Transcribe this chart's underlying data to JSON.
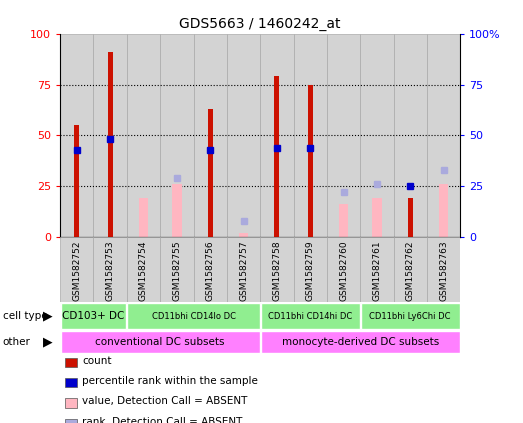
{
  "title": "GDS5663 / 1460242_at",
  "samples": [
    "GSM1582752",
    "GSM1582753",
    "GSM1582754",
    "GSM1582755",
    "GSM1582756",
    "GSM1582757",
    "GSM1582758",
    "GSM1582759",
    "GSM1582760",
    "GSM1582761",
    "GSM1582762",
    "GSM1582763"
  ],
  "count_values": [
    55,
    91,
    null,
    null,
    63,
    null,
    79,
    75,
    null,
    null,
    19,
    null
  ],
  "percentile_values": [
    43,
    48,
    null,
    null,
    43,
    null,
    44,
    44,
    null,
    null,
    25,
    null
  ],
  "absent_count_values": [
    null,
    null,
    19,
    26,
    null,
    2,
    null,
    null,
    16,
    19,
    null,
    26
  ],
  "absent_rank_values": [
    null,
    null,
    null,
    29,
    null,
    8,
    null,
    null,
    22,
    26,
    null,
    33
  ],
  "ylim": [
    0,
    100
  ],
  "bar_color_count": "#CC1100",
  "bar_color_percentile": "#0000CC",
  "bar_color_absent_count": "#FFB6C1",
  "bar_color_absent_rank": "#AAAADD",
  "col_bg_color": "#D3D3D3",
  "col_border_color": "#AAAAAA",
  "grid_color": "black",
  "cell_type_groups": [
    {
      "label": "CD103+ DC",
      "start": 0,
      "end": 2
    },
    {
      "label": "CD11bhi CD14lo DC",
      "start": 2,
      "end": 6
    },
    {
      "label": "CD11bhi CD14hi DC",
      "start": 6,
      "end": 9
    },
    {
      "label": "CD11bhi Ly6Chi DC",
      "start": 9,
      "end": 12
    }
  ],
  "other_groups": [
    {
      "label": "conventional DC subsets",
      "start": 0,
      "end": 6
    },
    {
      "label": "monocyte-derived DC subsets",
      "start": 6,
      "end": 12
    }
  ],
  "cell_type_color": "#90EE90",
  "other_color": "#FF80FF",
  "legend_items": [
    {
      "label": "count",
      "color": "#CC1100"
    },
    {
      "label": "percentile rank within the sample",
      "color": "#0000CC"
    },
    {
      "label": "value, Detection Call = ABSENT",
      "color": "#FFB6C1"
    },
    {
      "label": "rank, Detection Call = ABSENT",
      "color": "#AAAADD"
    }
  ]
}
